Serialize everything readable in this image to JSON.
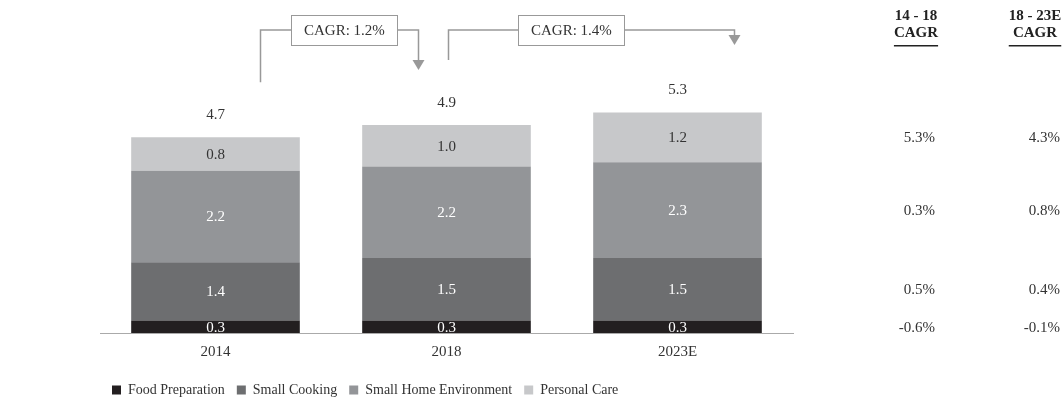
{
  "chart_data": {
    "type": "bar",
    "stacked": true,
    "categories": [
      "2014",
      "2018",
      "2023E"
    ],
    "series": [
      {
        "name": "Food Preparation",
        "color": "#231f20",
        "values": [
          0.3,
          0.3,
          0.3
        ]
      },
      {
        "name": "Small Cooking",
        "color": "#6d6e70",
        "values": [
          1.4,
          1.5,
          1.5
        ]
      },
      {
        "name": "Small Home Environment",
        "color": "#939598",
        "values": [
          2.2,
          2.2,
          2.3
        ]
      },
      {
        "name": "Personal Care",
        "color": "#c7c8ca",
        "values": [
          0.8,
          1.0,
          1.2
        ],
        "value_labels": [
          "0.8",
          "1.0",
          "1.2"
        ]
      }
    ],
    "totals": [
      "4.7",
      "4.9",
      "5.3"
    ],
    "data_labels": true,
    "legend": "bottom left",
    "annotations": [
      "CAGR: 1.2%",
      "CAGR: 1.4%",
      "14 - 18\nCAGR",
      "18 - 23E\nCAGR",
      "-0.6%",
      "-0.1%",
      "0.5%",
      "0.4%",
      "0.3%",
      "0.8%",
      "5.3%",
      "4.3%"
    ]
  }
}
